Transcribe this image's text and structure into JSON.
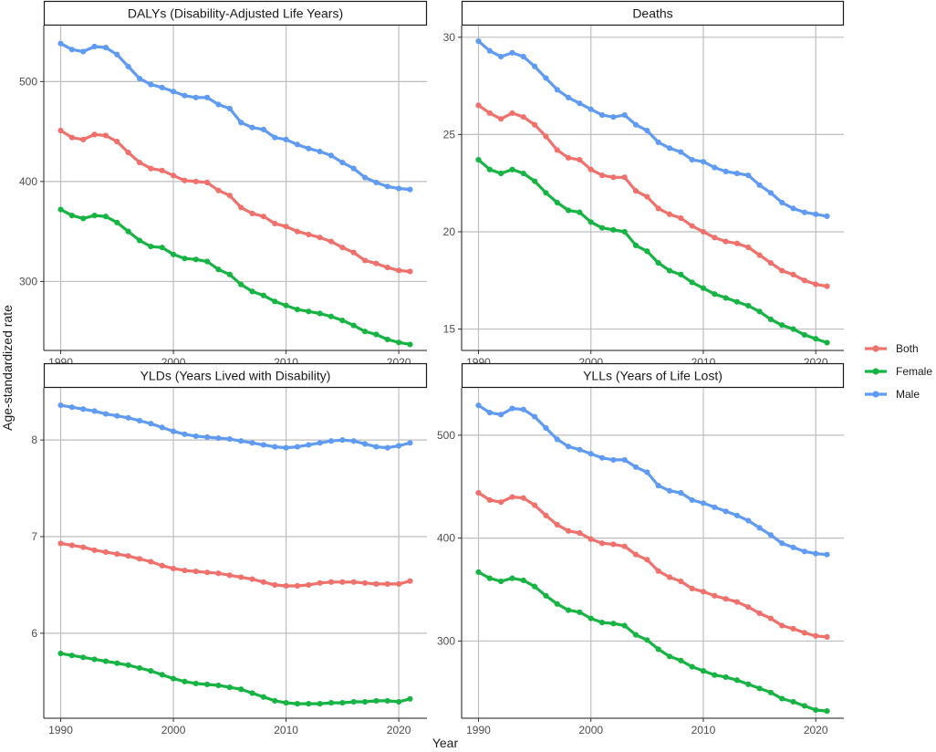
{
  "figure": {
    "ylabel": "Age-standardized rate",
    "xlabel": "Year"
  },
  "legend": {
    "items": [
      {
        "label": "Both",
        "color": "#F0716C"
      },
      {
        "label": "Female",
        "color": "#16B443"
      },
      {
        "label": "Male",
        "color": "#5F9BF3"
      }
    ]
  },
  "chart_data": [
    {
      "type": "line",
      "title": "DALYs (Disability-Adjusted Life Years)",
      "xlim": [
        1988.5,
        2022.5
      ],
      "ylim": [
        231,
        556
      ],
      "xticks": [
        1990,
        2000,
        2010,
        2020
      ],
      "yticks": [
        300,
        400,
        500
      ],
      "x": [
        1990,
        1991,
        1992,
        1993,
        1994,
        1995,
        1996,
        1997,
        1998,
        1999,
        2000,
        2001,
        2002,
        2003,
        2004,
        2005,
        2006,
        2007,
        2008,
        2009,
        2010,
        2011,
        2012,
        2013,
        2014,
        2015,
        2016,
        2017,
        2018,
        2019,
        2020,
        2021
      ],
      "series": [
        {
          "name": "Both",
          "color": "#F0716C",
          "values": [
            451,
            444,
            442,
            447,
            446,
            440,
            429,
            419,
            413,
            411,
            406,
            401,
            400,
            399,
            391,
            386,
            374,
            368,
            365,
            358,
            355,
            350,
            347,
            344,
            340,
            334,
            329,
            321,
            318,
            314,
            311,
            310
          ]
        },
        {
          "name": "Female",
          "color": "#16B443",
          "values": [
            372,
            366,
            363,
            366,
            365,
            359,
            350,
            341,
            335,
            334,
            327,
            323,
            322,
            320,
            312,
            307,
            297,
            290,
            286,
            280,
            276,
            272,
            270,
            268,
            265,
            261,
            256,
            250,
            247,
            242,
            239,
            237
          ]
        },
        {
          "name": "Male",
          "color": "#5F9BF3",
          "values": [
            538,
            532,
            530,
            535,
            534,
            527,
            515,
            503,
            497,
            494,
            490,
            486,
            484,
            484,
            477,
            473,
            459,
            454,
            452,
            444,
            442,
            437,
            433,
            430,
            426,
            419,
            413,
            404,
            399,
            395,
            393,
            392
          ]
        }
      ]
    },
    {
      "type": "line",
      "title": "Deaths",
      "xlim": [
        1988.5,
        2022.5
      ],
      "ylim": [
        13.9,
        30.6
      ],
      "xticks": [
        1990,
        2000,
        2010,
        2020
      ],
      "yticks": [
        15,
        20,
        25,
        30
      ],
      "x": [
        1990,
        1991,
        1992,
        1993,
        1994,
        1995,
        1996,
        1997,
        1998,
        1999,
        2000,
        2001,
        2002,
        2003,
        2004,
        2005,
        2006,
        2007,
        2008,
        2009,
        2010,
        2011,
        2012,
        2013,
        2014,
        2015,
        2016,
        2017,
        2018,
        2019,
        2020,
        2021
      ],
      "series": [
        {
          "name": "Both",
          "color": "#F0716C",
          "values": [
            26.5,
            26.1,
            25.8,
            26.1,
            25.9,
            25.5,
            24.9,
            24.2,
            23.8,
            23.7,
            23.2,
            22.9,
            22.8,
            22.8,
            22.1,
            21.8,
            21.2,
            20.9,
            20.7,
            20.3,
            20.0,
            19.7,
            19.5,
            19.4,
            19.2,
            18.8,
            18.4,
            18.0,
            17.8,
            17.5,
            17.3,
            17.2
          ]
        },
        {
          "name": "Female",
          "color": "#16B443",
          "values": [
            23.7,
            23.2,
            23.0,
            23.2,
            23.0,
            22.6,
            22.0,
            21.5,
            21.1,
            21.0,
            20.5,
            20.2,
            20.1,
            20.0,
            19.3,
            19.0,
            18.4,
            18.0,
            17.8,
            17.4,
            17.1,
            16.8,
            16.6,
            16.4,
            16.2,
            15.9,
            15.5,
            15.2,
            15.0,
            14.7,
            14.5,
            14.3
          ]
        },
        {
          "name": "Male",
          "color": "#5F9BF3",
          "values": [
            29.8,
            29.3,
            29.0,
            29.2,
            29.0,
            28.5,
            27.9,
            27.3,
            26.9,
            26.6,
            26.3,
            26.0,
            25.9,
            26.0,
            25.5,
            25.2,
            24.6,
            24.3,
            24.1,
            23.7,
            23.6,
            23.3,
            23.1,
            23.0,
            22.9,
            22.4,
            22.0,
            21.5,
            21.2,
            21.0,
            20.9,
            20.8
          ]
        }
      ]
    },
    {
      "type": "line",
      "title": "YLDs (Years Lived with Disability)",
      "xlim": [
        1988.5,
        2022.5
      ],
      "ylim": [
        5.12,
        8.54
      ],
      "xticks": [
        1990,
        2000,
        2010,
        2020
      ],
      "yticks": [
        6,
        7,
        8
      ],
      "x": [
        1990,
        1991,
        1992,
        1993,
        1994,
        1995,
        1996,
        1997,
        1998,
        1999,
        2000,
        2001,
        2002,
        2003,
        2004,
        2005,
        2006,
        2007,
        2008,
        2009,
        2010,
        2011,
        2012,
        2013,
        2014,
        2015,
        2016,
        2017,
        2018,
        2019,
        2020,
        2021
      ],
      "series": [
        {
          "name": "Both",
          "color": "#F0716C",
          "values": [
            6.93,
            6.91,
            6.89,
            6.86,
            6.84,
            6.82,
            6.8,
            6.77,
            6.74,
            6.7,
            6.67,
            6.65,
            6.64,
            6.63,
            6.62,
            6.6,
            6.58,
            6.56,
            6.53,
            6.5,
            6.49,
            6.49,
            6.5,
            6.52,
            6.53,
            6.53,
            6.53,
            6.52,
            6.51,
            6.51,
            6.51,
            6.54
          ]
        },
        {
          "name": "Female",
          "color": "#16B443",
          "values": [
            5.79,
            5.77,
            5.75,
            5.73,
            5.71,
            5.69,
            5.67,
            5.64,
            5.61,
            5.57,
            5.53,
            5.5,
            5.48,
            5.47,
            5.46,
            5.44,
            5.42,
            5.38,
            5.34,
            5.3,
            5.28,
            5.27,
            5.27,
            5.27,
            5.28,
            5.28,
            5.29,
            5.29,
            5.3,
            5.3,
            5.29,
            5.32
          ]
        },
        {
          "name": "Male",
          "color": "#5F9BF3",
          "values": [
            8.36,
            8.34,
            8.32,
            8.3,
            8.27,
            8.25,
            8.23,
            8.2,
            8.17,
            8.13,
            8.09,
            8.06,
            8.04,
            8.03,
            8.02,
            8.01,
            7.99,
            7.97,
            7.95,
            7.93,
            7.92,
            7.93,
            7.95,
            7.97,
            7.99,
            8.0,
            7.99,
            7.96,
            7.93,
            7.92,
            7.94,
            7.97
          ]
        }
      ]
    },
    {
      "type": "line",
      "title": "YLLs (Years of Life Lost)",
      "xlim": [
        1988.5,
        2022.5
      ],
      "ylim": [
        225,
        546
      ],
      "xticks": [
        1990,
        2000,
        2010,
        2020
      ],
      "yticks": [
        300,
        400,
        500
      ],
      "x": [
        1990,
        1991,
        1992,
        1993,
        1994,
        1995,
        1996,
        1997,
        1998,
        1999,
        2000,
        2001,
        2002,
        2003,
        2004,
        2005,
        2006,
        2007,
        2008,
        2009,
        2010,
        2011,
        2012,
        2013,
        2014,
        2015,
        2016,
        2017,
        2018,
        2019,
        2020,
        2021
      ],
      "series": [
        {
          "name": "Both",
          "color": "#F0716C",
          "values": [
            444,
            437,
            435,
            440,
            439,
            432,
            422,
            413,
            407,
            405,
            399,
            395,
            394,
            392,
            384,
            379,
            368,
            362,
            358,
            351,
            348,
            344,
            341,
            338,
            333,
            327,
            322,
            315,
            312,
            308,
            305,
            304
          ]
        },
        {
          "name": "Female",
          "color": "#16B443",
          "values": [
            367,
            361,
            358,
            361,
            359,
            353,
            344,
            336,
            330,
            328,
            322,
            318,
            317,
            315,
            306,
            301,
            292,
            285,
            281,
            275,
            271,
            267,
            265,
            262,
            258,
            254,
            250,
            244,
            241,
            237,
            233,
            232
          ]
        },
        {
          "name": "Male",
          "color": "#5F9BF3",
          "values": [
            529,
            522,
            520,
            526,
            525,
            518,
            507,
            496,
            489,
            486,
            482,
            478,
            476,
            476,
            469,
            464,
            451,
            446,
            444,
            437,
            434,
            430,
            426,
            422,
            417,
            410,
            403,
            395,
            391,
            387,
            385,
            384
          ]
        }
      ]
    }
  ]
}
